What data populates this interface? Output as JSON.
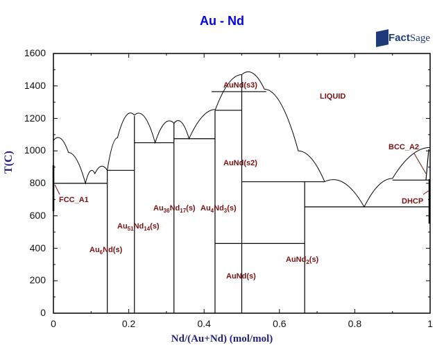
{
  "header": {
    "title": "Au - Nd",
    "logo": {
      "main": "Fact",
      "secondary": "Sage",
      "mark": "TM"
    }
  },
  "chart_data": {
    "type": "line",
    "title": "Au - Nd",
    "xlabel": "Nd/(Au+Nd) (mol/mol)",
    "ylabel": "T(C)",
    "xlim": [
      0,
      1
    ],
    "ylim": [
      0,
      1600
    ],
    "x_ticks": [
      "0",
      "0.2",
      "0.4",
      "0.6",
      "0.8",
      "1"
    ],
    "y_ticks": [
      "0",
      "200",
      "400",
      "600",
      "800",
      "1000",
      "1200",
      "1400",
      "1600"
    ],
    "grid": false,
    "phase_labels": [
      {
        "text": "LIQUID",
        "x": 0.74,
        "T": 1340
      },
      {
        "text": "FCC_A1",
        "x": 0.05,
        "T": 700
      },
      {
        "text": "Au6Nd(s)",
        "x": 0.14,
        "T": 390
      },
      {
        "text": "Au51Nd14(s)",
        "x": 0.2,
        "T": 530
      },
      {
        "text": "Au36Nd17(s)",
        "x": 0.32,
        "T": 650
      },
      {
        "text": "Au4Nd3(s)",
        "x": 0.44,
        "T": 650
      },
      {
        "text": "AuNd(s3)",
        "x": 0.5,
        "T": 1395
      },
      {
        "text": "AuNd(s2)",
        "x": 0.5,
        "T": 920
      },
      {
        "text": "AuNd(s)",
        "x": 0.5,
        "T": 215
      },
      {
        "text": "AuNd2(s)",
        "x": 0.69,
        "T": 320
      },
      {
        "text": "BCC_A2",
        "x": 0.93,
        "T": 1020
      },
      {
        "text": "DHCP",
        "x": 0.95,
        "T": 690
      }
    ],
    "compounds": [
      {
        "name": "Au6Nd",
        "x": 0.143,
        "T_top": 880
      },
      {
        "name": "Au51Nd14",
        "x": 0.215,
        "T_top": 1215
      },
      {
        "name": "Au36Nd17",
        "x": 0.32,
        "T_top": 1170
      },
      {
        "name": "Au4Nd3",
        "x": 0.429,
        "T_top": 1250
      },
      {
        "name": "AuNd",
        "x": 0.5,
        "T_top": 1470
      },
      {
        "name": "AuNd2",
        "x": 0.667,
        "T_top": 810
      }
    ],
    "invariants": [
      {
        "T": 800,
        "x_range": [
          0,
          0.143
        ]
      },
      {
        "T": 880,
        "x_range": [
          0.143,
          0.215
        ]
      },
      {
        "T": 1050,
        "x_range": [
          0.215,
          0.32
        ]
      },
      {
        "T": 1075,
        "x_range": [
          0.32,
          0.429
        ]
      },
      {
        "T": 1250,
        "x_range": [
          0.429,
          0.5
        ]
      },
      {
        "T": 1365,
        "x_range": [
          0.42,
          0.565
        ]
      },
      {
        "T": 810,
        "x_range": [
          0.5,
          0.72
        ]
      },
      {
        "T": 430,
        "x_range": [
          0.429,
          0.667
        ]
      },
      {
        "T": 655,
        "x_range": [
          0.667,
          1.0
        ]
      },
      {
        "T": 820,
        "x_range": [
          0.9,
          1.0
        ]
      }
    ],
    "liquidus": [
      [
        0,
        1064
      ],
      [
        0.04,
        990
      ],
      [
        0.085,
        800
      ],
      [
        0.11,
        860
      ],
      [
        0.143,
        880
      ],
      [
        0.17,
        1080
      ],
      [
        0.215,
        1220
      ],
      [
        0.27,
        1050
      ],
      [
        0.32,
        1170
      ],
      [
        0.36,
        1075
      ],
      [
        0.43,
        1255
      ],
      [
        0.5,
        1470
      ],
      [
        0.56,
        1380
      ],
      [
        0.65,
        1000
      ],
      [
        0.72,
        810
      ],
      [
        0.825,
        655
      ],
      [
        0.9,
        830
      ],
      [
        1.0,
        1021
      ]
    ]
  }
}
